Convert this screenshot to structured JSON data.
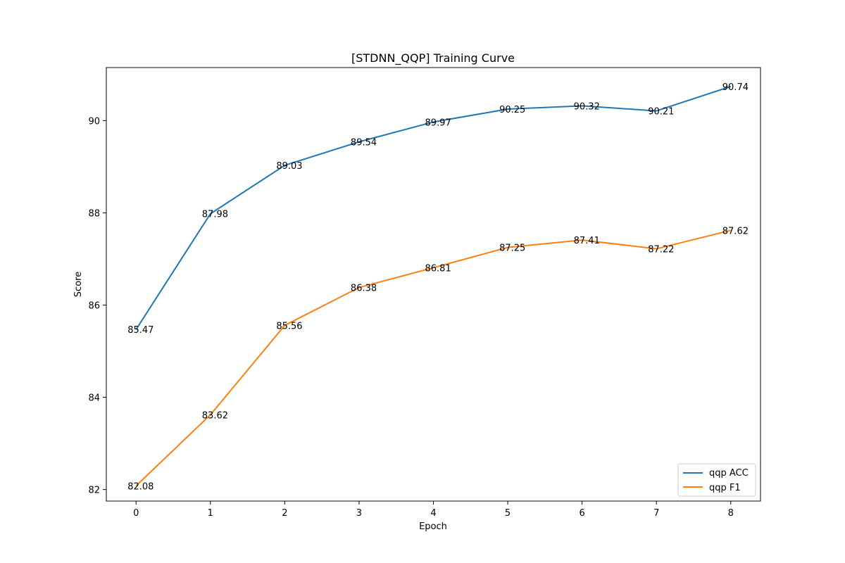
{
  "chart_data": {
    "type": "line",
    "title": "[STDNN_QQP] Training Curve",
    "xlabel": "Epoch",
    "ylabel": "Score",
    "x": [
      0,
      1,
      2,
      3,
      4,
      5,
      6,
      7,
      8
    ],
    "xlim": [
      -0.4,
      8.4
    ],
    "ylim": [
      81.75,
      91.15
    ],
    "xticks": [
      0,
      1,
      2,
      3,
      4,
      5,
      6,
      7,
      8
    ],
    "yticks": [
      82,
      84,
      86,
      88,
      90
    ],
    "grid": false,
    "legend_position": "lower-right",
    "series": [
      {
        "name": "qqp ACC",
        "color": "#1f77b4",
        "values": [
          85.47,
          87.98,
          89.03,
          89.54,
          89.97,
          90.25,
          90.32,
          90.21,
          90.74
        ],
        "labels": [
          "85.47",
          "87.98",
          "89.03",
          "89.54",
          "89.97",
          "90.25",
          "90.32",
          "90.21",
          "90.74"
        ]
      },
      {
        "name": "qqp F1",
        "color": "#ff7f0e",
        "values": [
          82.08,
          83.62,
          85.56,
          86.38,
          86.81,
          87.25,
          87.41,
          87.22,
          87.62
        ],
        "labels": [
          "82.08",
          "83.62",
          "85.56",
          "86.38",
          "86.81",
          "87.25",
          "87.41",
          "87.22",
          "87.62"
        ]
      }
    ]
  }
}
